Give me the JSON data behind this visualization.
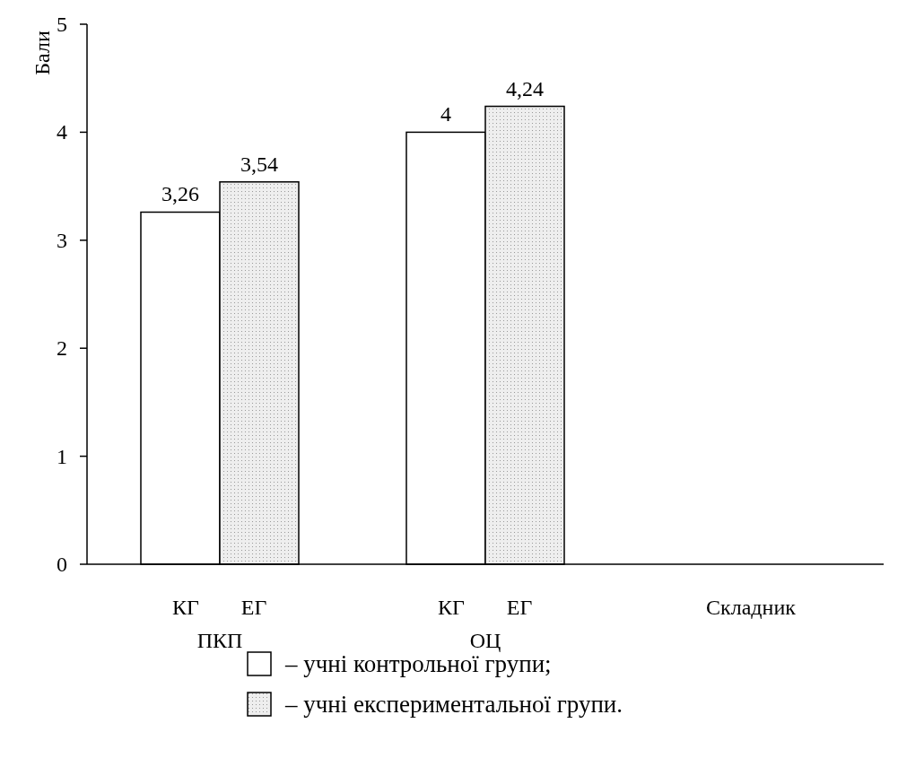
{
  "chart_data": {
    "type": "bar",
    "ylabel": "Бали",
    "xlabel": "Складник",
    "categories": [
      "ПКП",
      "ОЦ",
      null
    ],
    "series": [
      {
        "name": "– учні контрольної групи;",
        "color": "#ffffff",
        "values": [
          3.26,
          4,
          null
        ],
        "value_labels": [
          "3,26",
          "4",
          null
        ]
      },
      {
        "name": "– учні експериментальної групи.",
        "color": "#eeeeee",
        "values": [
          3.54,
          4.24,
          null
        ],
        "value_labels": [
          "3,54",
          "4,24",
          null
        ]
      }
    ],
    "annotations": [
      "КГ",
      "ЕГ",
      "КГ",
      "ЕГ"
    ],
    "ylim": [
      0,
      5
    ],
    "yticks": [
      0,
      1,
      2,
      3,
      4,
      5
    ],
    "grid": false,
    "legend": "bottom"
  }
}
